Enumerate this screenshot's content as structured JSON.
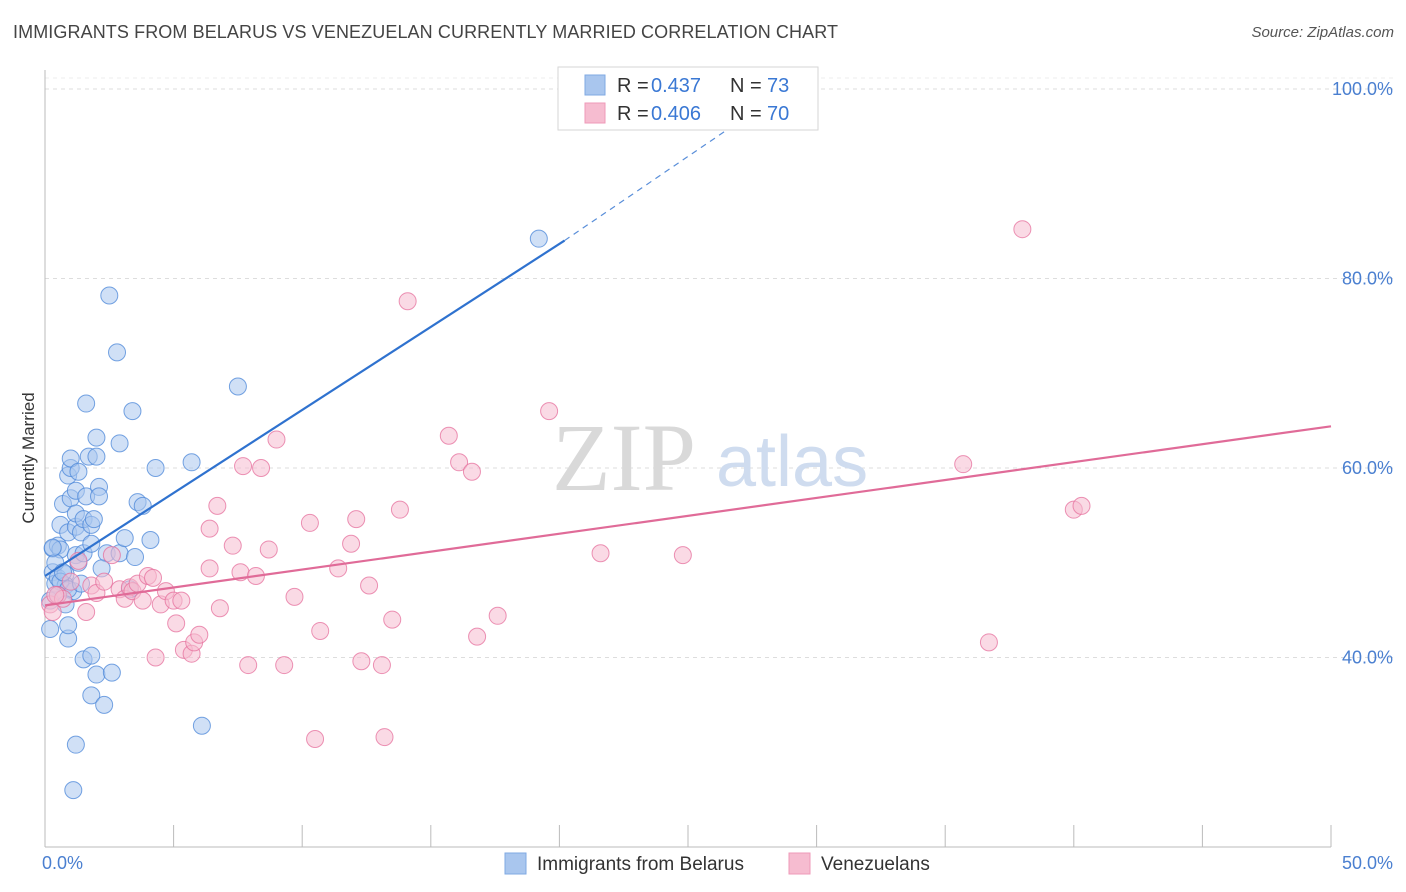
{
  "header": {
    "title": "IMMIGRANTS FROM BELARUS VS VENEZUELAN CURRENTLY MARRIED CORRELATION CHART",
    "source": "Source: ZipAtlas.com"
  },
  "watermark": {
    "zip": "ZIP",
    "atlas": "atlas"
  },
  "legend_top": {
    "rows": [
      {
        "r_label": "R =",
        "r_value": "0.437",
        "n_label": "N =",
        "n_value": "73",
        "color": "#a9c6ee"
      },
      {
        "r_label": "R =",
        "r_value": "0.406",
        "n_label": "N =",
        "n_value": "70",
        "color": "#f6bcd0"
      }
    ]
  },
  "legend_bottom": {
    "items": [
      {
        "label": "Immigrants from Belarus",
        "color": "#a9c6ee"
      },
      {
        "label": "Venezuelans",
        "color": "#f6bcd0"
      }
    ]
  },
  "chart_data": {
    "type": "scatter",
    "title": "IMMIGRANTS FROM BELARUS VS VENEZUELAN CURRENTLY MARRIED CORRELATION CHART",
    "xlabel": "",
    "ylabel": "Currently Married",
    "xlim": [
      0,
      50
    ],
    "ylim": [
      20,
      102
    ],
    "x_tick_labels": {
      "left": "0.0%",
      "right": "50.0%"
    },
    "y_ticks": [
      {
        "value": 40,
        "label": "40.0%"
      },
      {
        "value": 60,
        "label": "60.0%"
      },
      {
        "value": 80,
        "label": "80.0%"
      },
      {
        "value": 100,
        "label": "100.0%"
      }
    ],
    "grid": true,
    "series": [
      {
        "name": "Immigrants from Belarus",
        "color": "#4a86d8",
        "fill": "#a9c6ee",
        "trend": {
          "x0": 0,
          "y0": 48.6,
          "x1": 20.2,
          "y1": 84.0,
          "dash_to_x": 27.5,
          "dash_to_y": 97.5,
          "color": "#2f72cf"
        },
        "points": [
          [
            0.2,
            43.0
          ],
          [
            0.2,
            46.0
          ],
          [
            0.3,
            49.0
          ],
          [
            0.3,
            51.5
          ],
          [
            0.4,
            47.8
          ],
          [
            0.5,
            48.4
          ],
          [
            0.5,
            51.8
          ],
          [
            0.6,
            51.4
          ],
          [
            0.6,
            54.0
          ],
          [
            0.7,
            56.2
          ],
          [
            0.8,
            48.8
          ],
          [
            0.8,
            47.6
          ],
          [
            0.9,
            42.0
          ],
          [
            0.9,
            43.4
          ],
          [
            0.9,
            53.2
          ],
          [
            0.9,
            59.2
          ],
          [
            1.0,
            60.0
          ],
          [
            1.0,
            61.0
          ],
          [
            1.0,
            56.8
          ],
          [
            1.1,
            47.0
          ],
          [
            1.2,
            50.8
          ],
          [
            1.2,
            53.8
          ],
          [
            1.2,
            57.6
          ],
          [
            1.2,
            55.2
          ],
          [
            1.3,
            59.6
          ],
          [
            1.3,
            50.0
          ],
          [
            1.4,
            53.2
          ],
          [
            1.5,
            54.6
          ],
          [
            1.5,
            51.0
          ],
          [
            1.5,
            39.8
          ],
          [
            1.6,
            66.8
          ],
          [
            1.6,
            57.0
          ],
          [
            1.7,
            61.2
          ],
          [
            1.8,
            54.0
          ],
          [
            1.8,
            52.0
          ],
          [
            1.8,
            40.2
          ],
          [
            1.8,
            36.0
          ],
          [
            1.9,
            54.6
          ],
          [
            2.0,
            63.2
          ],
          [
            2.0,
            61.2
          ],
          [
            2.0,
            38.2
          ],
          [
            2.1,
            58.0
          ],
          [
            2.1,
            57.0
          ],
          [
            2.3,
            35.0
          ],
          [
            2.4,
            51.0
          ],
          [
            2.5,
            78.2
          ],
          [
            2.6,
            38.4
          ],
          [
            2.8,
            72.2
          ],
          [
            2.9,
            62.6
          ],
          [
            2.9,
            51.0
          ],
          [
            3.1,
            52.6
          ],
          [
            3.3,
            47.2
          ],
          [
            3.4,
            66.0
          ],
          [
            3.5,
            50.6
          ],
          [
            3.6,
            56.4
          ],
          [
            3.8,
            56.0
          ],
          [
            4.1,
            52.4
          ],
          [
            4.3,
            60.0
          ],
          [
            5.7,
            60.6
          ],
          [
            6.1,
            32.8
          ],
          [
            7.5,
            68.6
          ],
          [
            1.2,
            30.8
          ],
          [
            1.1,
            26.0
          ],
          [
            0.6,
            48.0
          ],
          [
            0.4,
            50.0
          ],
          [
            0.7,
            49.0
          ],
          [
            0.9,
            47.2
          ],
          [
            1.4,
            47.8
          ],
          [
            2.2,
            49.4
          ],
          [
            0.3,
            51.6
          ],
          [
            0.5,
            46.6
          ],
          [
            19.2,
            84.2
          ],
          [
            0.8,
            45.6
          ]
        ]
      },
      {
        "name": "Venezuelans",
        "color": "#e56f9c",
        "fill": "#f6bcd0",
        "trend": {
          "x0": 0,
          "y0": 45.5,
          "x1": 50,
          "y1": 64.4,
          "color": "#e06b98"
        },
        "points": [
          [
            0.2,
            45.6
          ],
          [
            0.3,
            44.8
          ],
          [
            0.5,
            46.6
          ],
          [
            0.7,
            46.2
          ],
          [
            1.0,
            48.0
          ],
          [
            1.3,
            50.2
          ],
          [
            1.6,
            44.8
          ],
          [
            1.8,
            47.6
          ],
          [
            2.0,
            46.8
          ],
          [
            2.3,
            48.0
          ],
          [
            2.6,
            50.8
          ],
          [
            2.9,
            47.2
          ],
          [
            3.1,
            46.2
          ],
          [
            3.3,
            47.4
          ],
          [
            3.4,
            47.0
          ],
          [
            3.6,
            47.8
          ],
          [
            3.8,
            46.0
          ],
          [
            4.0,
            48.6
          ],
          [
            4.2,
            48.4
          ],
          [
            4.3,
            40.0
          ],
          [
            4.5,
            45.6
          ],
          [
            4.7,
            47.0
          ],
          [
            5.0,
            46.0
          ],
          [
            5.1,
            43.6
          ],
          [
            5.3,
            46.0
          ],
          [
            5.4,
            40.8
          ],
          [
            5.7,
            40.4
          ],
          [
            5.8,
            41.6
          ],
          [
            6.0,
            42.4
          ],
          [
            6.4,
            49.4
          ],
          [
            6.4,
            53.6
          ],
          [
            6.7,
            56.0
          ],
          [
            6.8,
            45.2
          ],
          [
            7.3,
            51.8
          ],
          [
            7.6,
            49.0
          ],
          [
            7.7,
            60.2
          ],
          [
            7.9,
            39.2
          ],
          [
            8.2,
            48.6
          ],
          [
            8.4,
            60.0
          ],
          [
            8.7,
            51.4
          ],
          [
            9.0,
            63.0
          ],
          [
            9.3,
            39.2
          ],
          [
            9.7,
            46.4
          ],
          [
            10.3,
            54.2
          ],
          [
            10.5,
            31.4
          ],
          [
            10.7,
            42.8
          ],
          [
            11.4,
            49.4
          ],
          [
            11.9,
            52.0
          ],
          [
            12.1,
            54.6
          ],
          [
            12.3,
            39.6
          ],
          [
            12.6,
            47.6
          ],
          [
            13.1,
            39.2
          ],
          [
            13.2,
            31.6
          ],
          [
            13.5,
            44.0
          ],
          [
            13.8,
            55.6
          ],
          [
            14.1,
            77.6
          ],
          [
            15.7,
            63.4
          ],
          [
            16.1,
            60.6
          ],
          [
            16.6,
            59.6
          ],
          [
            16.8,
            42.2
          ],
          [
            17.6,
            44.4
          ],
          [
            19.6,
            66.0
          ],
          [
            21.6,
            51.0
          ],
          [
            24.8,
            50.8
          ],
          [
            35.7,
            60.4
          ],
          [
            36.7,
            41.6
          ],
          [
            38.0,
            85.2
          ],
          [
            40.0,
            55.6
          ],
          [
            40.3,
            56.0
          ],
          [
            0.4,
            46.6
          ]
        ]
      }
    ]
  }
}
